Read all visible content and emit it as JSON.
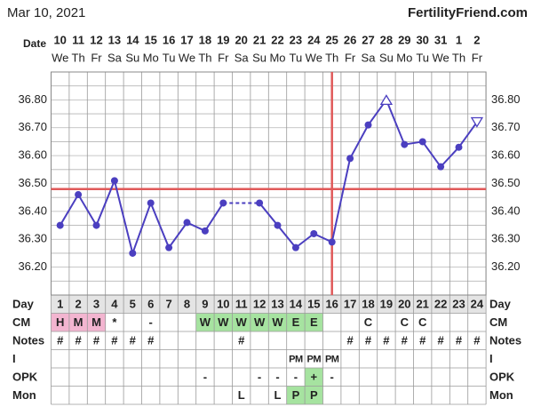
{
  "chart_data": {
    "type": "line",
    "title": "Mar 10, 2021",
    "site": "FertilityFriend.com",
    "date_label": "Date",
    "categories": [
      "10",
      "11",
      "12",
      "13",
      "14",
      "15",
      "16",
      "17",
      "18",
      "19",
      "20",
      "21",
      "22",
      "23",
      "24",
      "25",
      "26",
      "27",
      "28",
      "29",
      "30",
      "31",
      "1",
      "2"
    ],
    "weekdays": [
      "We",
      "Th",
      "Fr",
      "Sa",
      "Su",
      "Mo",
      "Tu",
      "We",
      "Th",
      "Fr",
      "Sa",
      "Su",
      "Mo",
      "Tu",
      "We",
      "Th",
      "Fr",
      "Sa",
      "Su",
      "Mo",
      "Tu",
      "We",
      "Th",
      "Fr"
    ],
    "values": [
      36.35,
      36.46,
      36.35,
      36.51,
      36.25,
      36.43,
      36.27,
      36.36,
      36.33,
      36.43,
      null,
      36.43,
      36.35,
      36.27,
      36.32,
      36.29,
      36.59,
      36.71,
      36.8,
      36.64,
      36.65,
      36.56,
      36.63,
      36.72
    ],
    "marker_shapes": [
      "circle",
      "circle",
      "circle",
      "circle",
      "circle",
      "circle",
      "circle",
      "circle",
      "circle",
      "circle",
      null,
      "circle",
      "circle",
      "circle",
      "circle",
      "circle",
      "circle",
      "circle",
      "triangle-up",
      "circle",
      "circle",
      "circle",
      "circle",
      "triangle-down"
    ],
    "color": "#4b3fc0",
    "coverline": 36.48,
    "ovulation_day": 16,
    "marker_line_color": "#e05a5a",
    "ylim": [
      36.1,
      36.9
    ],
    "yticks": [
      {
        "value": 36.2,
        "label": "36.20"
      },
      {
        "value": 36.3,
        "label": "36.30"
      },
      {
        "value": 36.4,
        "label": "36.40"
      },
      {
        "value": 36.5,
        "label": "36.50"
      },
      {
        "value": 36.6,
        "label": "36.60"
      },
      {
        "value": 36.7,
        "label": "36.70"
      },
      {
        "value": 36.8,
        "label": "36.80"
      }
    ],
    "minor_yticks": [
      36.15,
      36.25,
      36.35,
      36.45,
      36.55,
      36.65,
      36.75,
      36.85
    ],
    "grid": true,
    "table": [
      {
        "label": "Day",
        "cells": [
          1,
          2,
          3,
          4,
          5,
          6,
          7,
          8,
          9,
          10,
          11,
          12,
          13,
          14,
          15,
          16,
          17,
          18,
          19,
          20,
          21,
          22,
          23,
          24
        ],
        "fills": [
          "#e4e4e4",
          "#e4e4e4",
          "#e4e4e4",
          "#e4e4e4",
          "#e4e4e4",
          "#e4e4e4",
          "#e4e4e4",
          "#e4e4e4",
          "#e4e4e4",
          "#e4e4e4",
          "#e4e4e4",
          "#e4e4e4",
          "#e4e4e4",
          "#e4e4e4",
          "#e4e4e4",
          "#e4e4e4",
          "#e4e4e4",
          "#e4e4e4",
          "#e4e4e4",
          "#e4e4e4",
          "#e4e4e4",
          "#e4e4e4",
          "#e4e4e4",
          "#e4e4e4"
        ]
      },
      {
        "label": "CM",
        "cells": [
          "H",
          "M",
          "M",
          "*",
          null,
          "-",
          null,
          null,
          "W",
          "W",
          "W",
          "W",
          "W",
          "E",
          "E",
          null,
          null,
          "C",
          null,
          "C",
          "C",
          null,
          null,
          null
        ],
        "fills": [
          "#f3b5d0",
          "#f3b5d0",
          "#f3b5d0",
          null,
          null,
          null,
          null,
          null,
          "#a6e3a0",
          "#a6e3a0",
          "#a6e3a0",
          "#a6e3a0",
          "#a6e3a0",
          "#a6e3a0",
          "#a6e3a0",
          null,
          null,
          null,
          null,
          null,
          null,
          null,
          null,
          null
        ]
      },
      {
        "label": "Notes",
        "cells": [
          "#",
          "#",
          "#",
          "#",
          "#",
          "#",
          null,
          null,
          null,
          null,
          "#",
          null,
          null,
          null,
          null,
          null,
          "#",
          "#",
          "#",
          "#",
          "#",
          "#",
          "#",
          "#"
        ]
      },
      {
        "label": "I",
        "cells": [
          null,
          null,
          null,
          null,
          null,
          null,
          null,
          null,
          null,
          null,
          null,
          null,
          null,
          "PM",
          "PM",
          "PM",
          null,
          null,
          null,
          null,
          null,
          null,
          null,
          null
        ]
      },
      {
        "label": "OPK",
        "cells": [
          null,
          null,
          null,
          null,
          null,
          null,
          null,
          null,
          "-",
          null,
          null,
          "-",
          "-",
          "-",
          "+",
          "-",
          null,
          null,
          null,
          null,
          null,
          null,
          null,
          null
        ],
        "fills": [
          null,
          null,
          null,
          null,
          null,
          null,
          null,
          null,
          null,
          null,
          null,
          null,
          null,
          null,
          "#a6e3a0",
          null,
          null,
          null,
          null,
          null,
          null,
          null,
          null,
          null
        ]
      },
      {
        "label": "Mon",
        "cells": [
          null,
          null,
          null,
          null,
          null,
          null,
          null,
          null,
          null,
          null,
          "L",
          null,
          "L",
          "P",
          "P",
          null,
          null,
          null,
          null,
          null,
          null,
          null,
          null,
          null
        ],
        "fills": [
          null,
          null,
          null,
          null,
          null,
          null,
          null,
          null,
          null,
          null,
          null,
          null,
          null,
          "#a6e3a0",
          "#a6e3a0",
          null,
          null,
          null,
          null,
          null,
          null,
          null,
          null,
          null
        ]
      }
    ]
  }
}
